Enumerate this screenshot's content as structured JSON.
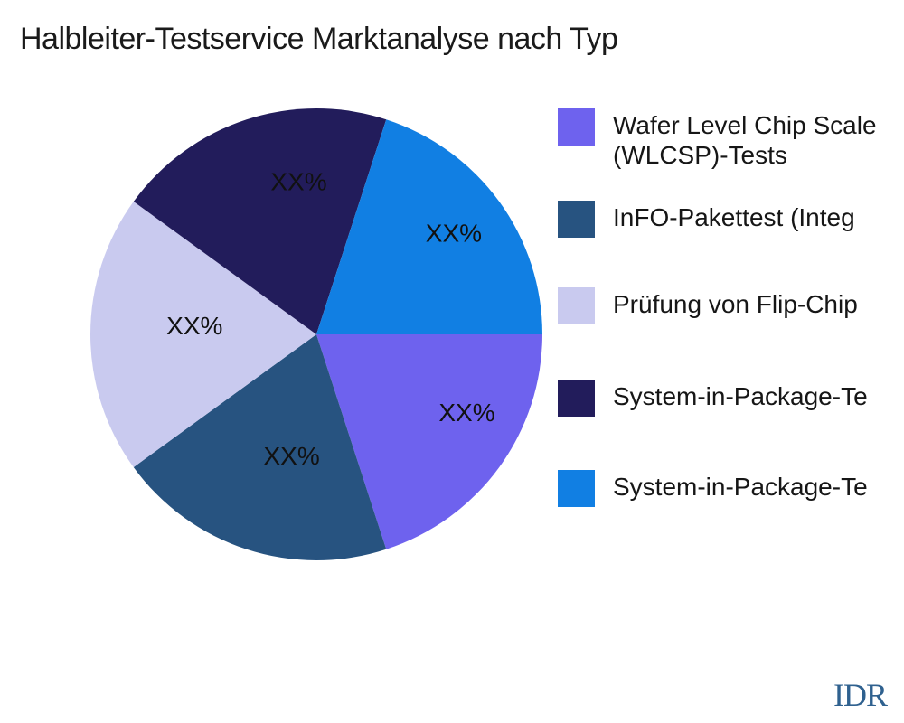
{
  "title": "Halbleiter-Testservice Marktanalyse nach Typ",
  "watermark": "IDR",
  "chart_data": {
    "type": "pie",
    "title": "Halbleiter-Testservice Marktanalyse nach Typ",
    "values": [
      20,
      20,
      20,
      20,
      20
    ],
    "slice_labels": [
      "XX%",
      "XX%",
      "XX%",
      "XX%",
      "XX%"
    ],
    "colors": [
      "#6E62EE",
      "#275380",
      "#C9CAEF",
      "#221C5B",
      "#117FE3"
    ],
    "legend_items": [
      {
        "lines": [
          "Wafer Level Chip Scale",
          "(WLCSP)-Tests"
        ]
      },
      {
        "lines": [
          "InFO-Pakettest (Integ"
        ]
      },
      {
        "lines": [
          "Prüfung von Flip-Chip"
        ]
      },
      {
        "lines": [
          "System-in-Package-Te"
        ]
      },
      {
        "lines": [
          "System-in-Package-Te"
        ]
      }
    ],
    "layout": {
      "start_angle_deg": 0,
      "direction": "clockwise",
      "legend_position": "right",
      "label_angles_deg": [
        -27.4,
        -101.5,
        176.0,
        96.6,
        36.4
      ],
      "label_distances": [
        0.75,
        0.55,
        0.54,
        0.68,
        0.755
      ]
    }
  }
}
